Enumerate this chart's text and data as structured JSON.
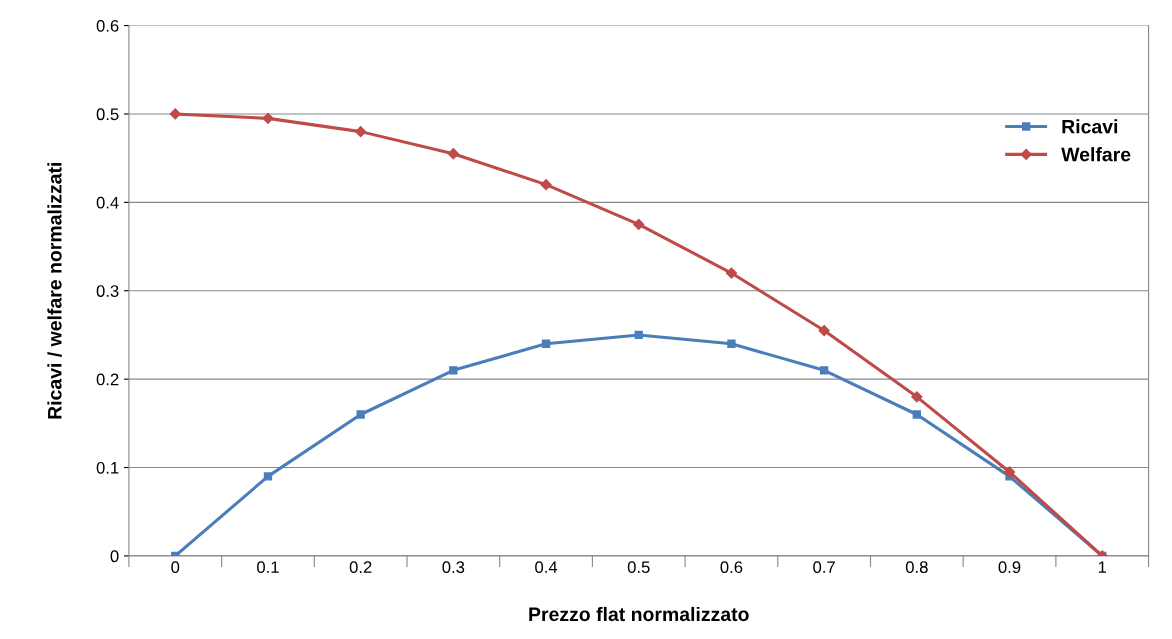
{
  "chart_data": {
    "type": "line",
    "xlabel": "Prezzo flat normalizzato",
    "ylabel": "Ricavi / welfare normalizzati",
    "categories": [
      "0",
      "0.1",
      "0.2",
      "0.3",
      "0.4",
      "0.5",
      "0.6",
      "0.7",
      "0.8",
      "0.9",
      "1"
    ],
    "series": [
      {
        "name": "Ricavi",
        "color": "#4a7ebb",
        "marker": "square",
        "values": [
          0,
          0.09,
          0.16,
          0.21,
          0.24,
          0.25,
          0.24,
          0.21,
          0.16,
          0.09,
          0
        ]
      },
      {
        "name": "Welfare",
        "color": "#be4b48",
        "marker": "diamond",
        "values": [
          0.5,
          0.495,
          0.48,
          0.455,
          0.42,
          0.375,
          0.32,
          0.255,
          0.18,
          0.095,
          0
        ]
      }
    ],
    "ylim": [
      0,
      0.6
    ],
    "yticks": [
      0,
      0.1,
      0.2,
      0.3,
      0.4,
      0.5,
      0.6
    ],
    "grid": "y",
    "legend": "right",
    "line_style": "solid"
  }
}
